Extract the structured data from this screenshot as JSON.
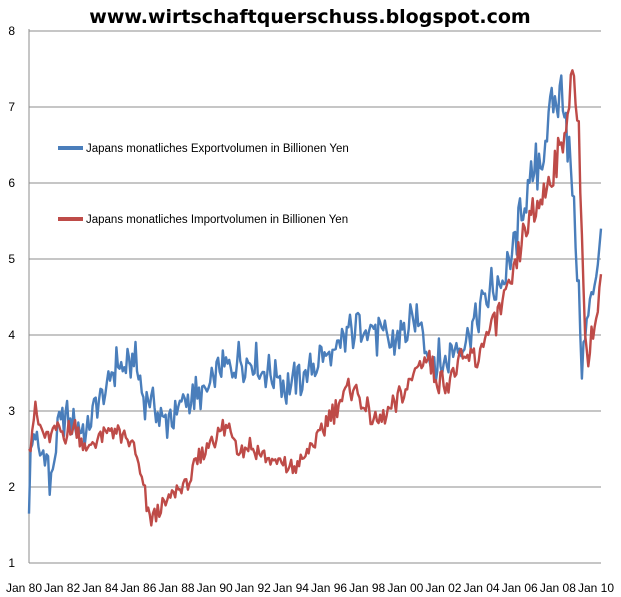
{
  "header": {
    "title": "www.wirtschaftquerschuss.blogspot.com"
  },
  "chart_data": {
    "type": "line",
    "title": "",
    "xlabel": "",
    "ylabel": "",
    "ylim": [
      1,
      8
    ],
    "xlim": [
      1980.0,
      2010.0
    ],
    "yticks": [
      "1",
      "2",
      "3",
      "4",
      "5",
      "6",
      "7",
      "8"
    ],
    "xticks": [
      "Jan 80",
      "Jan 82",
      "Jan 84",
      "Jan 86",
      "Jan 88",
      "Jan 90",
      "Jan 92",
      "Jan 94",
      "Jan 96",
      "Jan 98",
      "Jan 00",
      "Jan 02",
      "Jan 04",
      "Jan 06",
      "Jan 08",
      "Jan 10"
    ],
    "grid": "horizontal",
    "legend_position": "left-inside",
    "series": [
      {
        "name": "Japans monatliches Exportvolumen in Billionen Yen",
        "color": "#4a7ebb",
        "x": [
          1980.0,
          1980.1,
          1980.25,
          1980.5,
          1981.0,
          1981.1,
          1981.5,
          1982.0,
          1982.5,
          1983.0,
          1983.5,
          1984.0,
          1984.5,
          1985.0,
          1985.5,
          1986.0,
          1986.5,
          1987.0,
          1987.5,
          1988.0,
          1988.5,
          1989.0,
          1989.5,
          1990.0,
          1990.5,
          1991.0,
          1991.5,
          1992.0,
          1992.5,
          1993.0,
          1993.5,
          1994.0,
          1994.5,
          1995.0,
          1995.5,
          1996.0,
          1996.5,
          1997.0,
          1997.5,
          1998.0,
          1998.5,
          1999.0,
          1999.5,
          2000.0,
          2000.5,
          2001.0,
          2001.5,
          2002.0,
          2002.5,
          2003.0,
          2003.5,
          2004.0,
          2004.5,
          2005.0,
          2005.5,
          2006.0,
          2006.5,
          2007.0,
          2007.5,
          2008.0,
          2008.3,
          2008.6,
          2008.9,
          2009.0,
          2009.1,
          2009.3,
          2009.5,
          2009.8,
          2010.0
        ],
        "values": [
          1.65,
          2.5,
          2.75,
          2.5,
          2.45,
          1.9,
          2.8,
          2.9,
          2.8,
          2.75,
          3.1,
          3.2,
          3.6,
          3.5,
          3.7,
          3.2,
          3.1,
          2.85,
          2.9,
          3.1,
          3.2,
          3.2,
          3.3,
          3.55,
          3.5,
          3.65,
          3.6,
          3.6,
          3.5,
          3.5,
          3.3,
          3.4,
          3.5,
          3.6,
          3.75,
          3.7,
          3.9,
          4.1,
          4.2,
          4.05,
          3.95,
          3.9,
          4.05,
          4.15,
          4.2,
          3.75,
          3.65,
          3.7,
          3.9,
          4.0,
          4.25,
          4.5,
          4.7,
          4.7,
          5.2,
          5.7,
          6.1,
          6.5,
          7.0,
          7.25,
          6.5,
          5.5,
          4.3,
          3.5,
          3.9,
          4.1,
          4.5,
          5.0,
          5.4
        ]
      },
      {
        "name": "Japans monatliches Importvolumen in Billionen Yen",
        "color": "#be4b48",
        "x": [
          1980.0,
          1980.3,
          1980.6,
          1981.0,
          1981.5,
          1982.0,
          1982.5,
          1983.0,
          1983.5,
          1984.0,
          1984.5,
          1985.0,
          1985.5,
          1986.0,
          1986.3,
          1986.6,
          1987.0,
          1987.5,
          1988.0,
          1988.5,
          1989.0,
          1989.5,
          1990.0,
          1990.5,
          1991.0,
          1991.5,
          1992.0,
          1992.5,
          1993.0,
          1993.5,
          1994.0,
          1994.5,
          1995.0,
          1995.5,
          1996.0,
          1996.5,
          1997.0,
          1997.5,
          1998.0,
          1998.5,
          1999.0,
          1999.5,
          2000.0,
          2000.5,
          2001.0,
          2001.5,
          2002.0,
          2002.5,
          2003.0,
          2003.5,
          2004.0,
          2004.5,
          2005.0,
          2005.5,
          2006.0,
          2006.5,
          2007.0,
          2007.5,
          2008.0,
          2008.5,
          2008.8,
          2009.0,
          2009.1,
          2009.3,
          2009.5,
          2009.8,
          2010.0
        ],
        "values": [
          2.5,
          3.0,
          2.8,
          2.6,
          2.75,
          2.7,
          2.8,
          2.45,
          2.65,
          2.7,
          2.75,
          2.6,
          2.55,
          2.0,
          1.6,
          1.6,
          1.75,
          1.9,
          2.0,
          2.1,
          2.4,
          2.6,
          2.75,
          2.8,
          2.5,
          2.55,
          2.45,
          2.4,
          2.3,
          2.25,
          2.25,
          2.4,
          2.6,
          2.8,
          3.0,
          3.2,
          3.35,
          3.1,
          2.9,
          2.85,
          3.0,
          3.2,
          3.4,
          3.65,
          3.65,
          3.4,
          3.4,
          3.6,
          3.7,
          3.7,
          4.0,
          4.2,
          4.5,
          4.8,
          5.4,
          5.6,
          5.85,
          6.2,
          6.6,
          7.35,
          6.9,
          5.5,
          4.4,
          3.6,
          4.0,
          4.3,
          4.8
        ]
      }
    ]
  }
}
